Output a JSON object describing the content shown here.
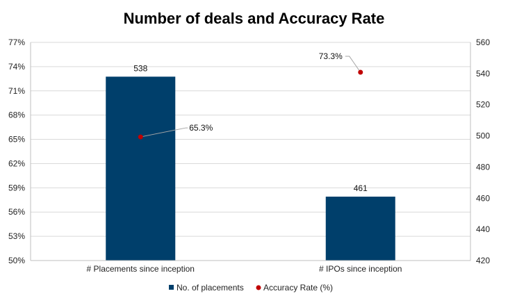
{
  "chart_data": {
    "type": "bar",
    "title": "Number of deals and Accuracy Rate",
    "categories": [
      "# Placements since inception",
      "# IPOs since inception"
    ],
    "series": [
      {
        "name": "No. of placements",
        "type": "bar",
        "axis": "right",
        "values": [
          538,
          461
        ],
        "labels": [
          "538",
          "461"
        ],
        "color": "#003f6b"
      },
      {
        "name": "Accuracy Rate (%)",
        "type": "scatter",
        "axis": "left",
        "values": [
          65.3,
          73.3
        ],
        "labels": [
          "65.3%",
          "73.3%"
        ],
        "color": "#c00000"
      }
    ],
    "y_left": {
      "min": 50,
      "max": 77,
      "step": 3,
      "ticks": [
        "50%",
        "53%",
        "56%",
        "59%",
        "62%",
        "65%",
        "68%",
        "71%",
        "74%",
        "77%"
      ]
    },
    "y_right": {
      "min": 420,
      "max": 560,
      "step": 20,
      "ticks": [
        "420",
        "440",
        "460",
        "480",
        "500",
        "520",
        "540",
        "560"
      ]
    },
    "grid": true,
    "legend_position": "bottom"
  }
}
